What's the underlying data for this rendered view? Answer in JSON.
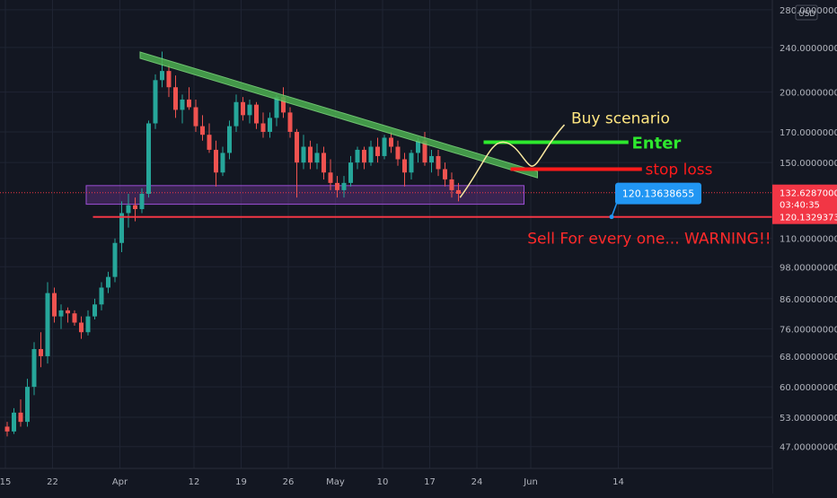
{
  "chart_data": {
    "type": "candlestick",
    "currency": "USD",
    "y_axis": {
      "scale": "log",
      "tick_labels": [
        "47.00000000",
        "53.00000000",
        "60.00000000",
        "68.00000000",
        "76.00000000",
        "86.00000000",
        "98.00000000",
        "110.00000000",
        "150.00000000",
        "170.00000000",
        "200.00000000",
        "240.00000000",
        "280.00000000"
      ],
      "tick_values": [
        47,
        53,
        60,
        68,
        76,
        86,
        98,
        110,
        150,
        170,
        200,
        240,
        280
      ],
      "range": [
        43,
        285
      ]
    },
    "x_axis": {
      "tick_labels": [
        "15",
        "22",
        "Apr",
        "12",
        "19",
        "26",
        "May",
        "10",
        "17",
        "24",
        "Jun",
        "14"
      ],
      "tick_dates": [
        "2021-03-15",
        "2021-03-22",
        "2021-04-01",
        "2021-04-12",
        "2021-04-19",
        "2021-04-26",
        "2021-05-03",
        "2021-05-10",
        "2021-05-17",
        "2021-05-24",
        "2021-06-01",
        "2021-06-14"
      ]
    },
    "grid": true,
    "current_price": {
      "label": "132.62870000",
      "value": 132.6287,
      "countdown": "03:40:35",
      "color": "#f23645"
    },
    "support_line": {
      "label": "120.13293735",
      "value": 120.13293735,
      "color": "#f23645"
    },
    "callout": {
      "label": "120.13638655",
      "value": 120.13638655
    },
    "annotations": {
      "buy_scenario": "Buy scenario",
      "enter": "Enter",
      "stop_loss": "stop loss",
      "warning": "Sell For every one... WARNING!!"
    },
    "levels": {
      "enter": 163,
      "stop_loss": 146,
      "triangle_start": 233,
      "triangle_end": 143
    },
    "support_zone": [
      126.5,
      136.5
    ],
    "candles": [
      [
        51,
        52,
        49,
        50
      ],
      [
        50,
        55,
        49.5,
        54
      ],
      [
        54,
        57,
        51,
        52
      ],
      [
        52,
        62,
        51,
        60
      ],
      [
        60,
        72,
        58,
        70
      ],
      [
        70,
        75,
        65,
        68
      ],
      [
        68,
        92,
        66,
        88
      ],
      [
        88,
        90,
        78,
        80
      ],
      [
        80,
        84,
        76,
        82
      ],
      [
        82,
        83,
        78,
        81
      ],
      [
        81,
        82,
        77,
        78
      ],
      [
        78,
        80,
        73,
        75
      ],
      [
        75,
        82,
        74,
        80
      ],
      [
        80,
        86,
        79,
        84
      ],
      [
        84,
        92,
        82,
        90
      ],
      [
        90,
        96,
        88,
        94
      ],
      [
        94,
        110,
        92,
        108
      ],
      [
        108,
        128,
        104,
        122
      ],
      [
        122,
        132,
        115,
        126
      ],
      [
        126,
        130,
        118,
        124
      ],
      [
        124,
        135,
        122,
        132
      ],
      [
        132,
        178,
        130,
        176
      ],
      [
        176,
        215,
        172,
        210
      ],
      [
        210,
        236,
        204,
        218
      ],
      [
        218,
        224,
        196,
        204
      ],
      [
        204,
        214,
        180,
        186
      ],
      [
        186,
        198,
        176,
        194
      ],
      [
        194,
        204,
        186,
        188
      ],
      [
        188,
        194,
        170,
        174
      ],
      [
        174,
        182,
        164,
        168
      ],
      [
        168,
        176,
        156,
        158
      ],
      [
        158,
        164,
        136,
        144
      ],
      [
        144,
        160,
        142,
        156
      ],
      [
        156,
        178,
        152,
        174
      ],
      [
        174,
        198,
        170,
        192
      ],
      [
        192,
        196,
        178,
        182
      ],
      [
        182,
        194,
        176,
        190
      ],
      [
        190,
        192,
        172,
        176
      ],
      [
        176,
        184,
        166,
        170
      ],
      [
        170,
        184,
        166,
        180
      ],
      [
        180,
        198,
        174,
        196
      ],
      [
        196,
        204,
        180,
        184
      ],
      [
        184,
        188,
        166,
        170
      ],
      [
        170,
        172,
        130,
        150
      ],
      [
        150,
        168,
        146,
        160
      ],
      [
        160,
        164,
        146,
        150
      ],
      [
        150,
        162,
        146,
        156
      ],
      [
        156,
        160,
        140,
        144
      ],
      [
        144,
        152,
        134,
        138
      ],
      [
        138,
        142,
        130,
        134
      ],
      [
        134,
        142,
        130,
        138
      ],
      [
        138,
        154,
        136,
        150
      ],
      [
        150,
        160,
        146,
        158
      ],
      [
        158,
        160,
        146,
        150
      ],
      [
        150,
        164,
        148,
        160
      ],
      [
        160,
        166,
        150,
        154
      ],
      [
        154,
        168,
        152,
        166
      ],
      [
        166,
        170,
        156,
        160
      ],
      [
        160,
        164,
        148,
        152
      ],
      [
        152,
        156,
        136,
        144
      ],
      [
        144,
        158,
        140,
        156
      ],
      [
        156,
        166,
        150,
        164
      ],
      [
        164,
        170,
        148,
        150
      ],
      [
        150,
        158,
        144,
        154
      ],
      [
        154,
        158,
        142,
        146
      ],
      [
        146,
        150,
        136,
        140
      ],
      [
        140,
        144,
        130,
        134
      ],
      [
        134,
        138,
        128,
        132
      ]
    ]
  }
}
